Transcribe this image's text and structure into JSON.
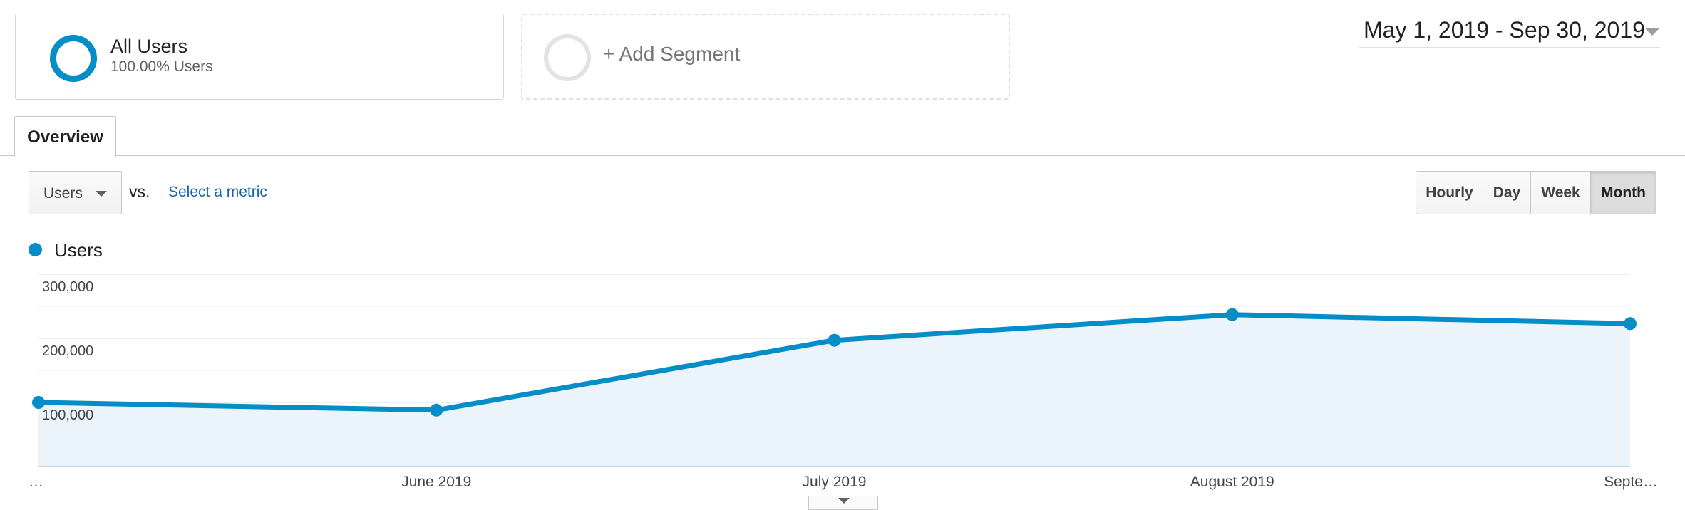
{
  "segments": {
    "all_users": {
      "title": "All Users",
      "subtitle": "100.00% Users",
      "ring_color": "#058dc7"
    },
    "add_segment": {
      "label": "+ Add Segment"
    }
  },
  "date_range": {
    "label": "May 1, 2019 - Sep 30, 2019"
  },
  "tabs": [
    {
      "label": "Overview",
      "active": true
    }
  ],
  "metric": {
    "selected": "Users",
    "vs_label": "vs.",
    "select_link": "Select a metric"
  },
  "granularity": [
    {
      "label": "Hourly",
      "active": false
    },
    {
      "label": "Day",
      "active": false
    },
    {
      "label": "Week",
      "active": false
    },
    {
      "label": "Month",
      "active": true
    }
  ],
  "legend": {
    "label": "Users",
    "color": "#058dc7"
  },
  "icons": {
    "date_caret": "caret-down-icon",
    "metric_caret": "caret-down-icon",
    "handle": "caret-down-icon"
  },
  "chart_data": {
    "type": "area",
    "x": [
      "…",
      "June 2019",
      "July 2019",
      "August 2019",
      "Septe…"
    ],
    "series": [
      {
        "name": "Users",
        "values": [
          100000,
          88000,
          197000,
          237000,
          223000
        ]
      }
    ],
    "yticks": [
      "100,000",
      "200,000",
      "300,000"
    ],
    "ylim": [
      0,
      300000
    ],
    "line_color": "#058dc7",
    "fill_color": "#e8f2fa",
    "grid": true
  }
}
